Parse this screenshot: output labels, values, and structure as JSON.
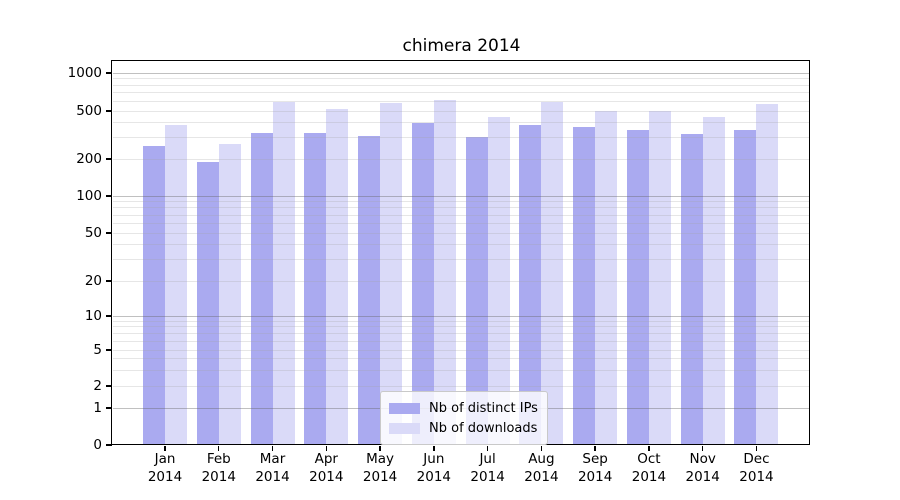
{
  "figure": {
    "background": "#ffffff"
  },
  "chart_data": {
    "type": "bar",
    "title": "chimera 2014",
    "categories": [
      "Jan 2014",
      "Feb 2014",
      "Mar 2014",
      "Apr 2014",
      "May 2014",
      "Jun 2014",
      "Jul 2014",
      "Aug 2014",
      "Sep 2014",
      "Oct 2014",
      "Nov 2014",
      "Dec 2014"
    ],
    "series": [
      {
        "name": "Nb of distinct IPs",
        "color": "#aaaaf0",
        "values": [
          255,
          190,
          330,
          330,
          310,
          395,
          305,
          385,
          365,
          345,
          320,
          345
        ]
      },
      {
        "name": "Nb of downloads",
        "color": "#dadaf8",
        "values": [
          385,
          265,
          590,
          520,
          575,
          610,
          445,
          590,
          500,
          500,
          445,
          565
        ]
      }
    ],
    "xlabel": "",
    "ylabel": "",
    "y_axis": {
      "scale": "symlog",
      "ticks": [
        0,
        1,
        2,
        5,
        10,
        20,
        50,
        100,
        200,
        500,
        1000
      ],
      "major_grid_values": [
        1,
        10,
        100,
        1000
      ],
      "minor_grid_multiples": [
        2,
        3,
        4,
        5,
        6,
        7,
        8,
        9
      ],
      "range": [
        0,
        1200
      ]
    },
    "grid": true,
    "grid_over_bars": true,
    "legend_position": "inside-bottom-center"
  },
  "legend": {
    "items": [
      {
        "label": "Nb of distinct IPs",
        "color": "#aaaaf0"
      },
      {
        "label": "Nb of downloads",
        "color": "#dadaf8"
      }
    ]
  }
}
